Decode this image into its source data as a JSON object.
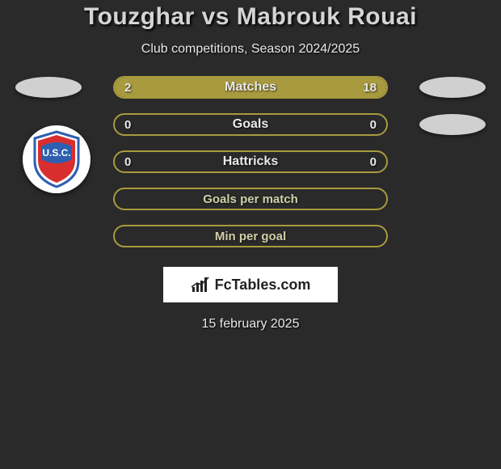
{
  "title": "Touzghar vs Mabrouk Rouai",
  "subtitle": "Club competitions, Season 2024/2025",
  "date": "15 february 2025",
  "brand": "FcTables.com",
  "bar_border_color": "#a89a3e",
  "bar_fill_color": "#a89a3e",
  "empty_bar_color": "transparent",
  "crest_colors": {
    "outer": "#ffffff",
    "red": "#d82e2e",
    "blue": "#2e5fb0",
    "text": "#ffffff"
  },
  "metrics": [
    {
      "label": "Matches",
      "left_value": "2",
      "right_value": "18",
      "left_pct": 10,
      "right_pct": 90,
      "show_left_badge": true,
      "show_right_badge": true
    },
    {
      "label": "Goals",
      "left_value": "0",
      "right_value": "0",
      "left_pct": 0,
      "right_pct": 0,
      "show_left_badge": false,
      "show_right_badge": true
    },
    {
      "label": "Hattricks",
      "left_value": "0",
      "right_value": "0",
      "left_pct": 0,
      "right_pct": 0,
      "show_left_badge": false,
      "show_right_badge": false
    }
  ],
  "sub_metrics": [
    {
      "label": "Goals per match"
    },
    {
      "label": "Min per goal"
    }
  ]
}
